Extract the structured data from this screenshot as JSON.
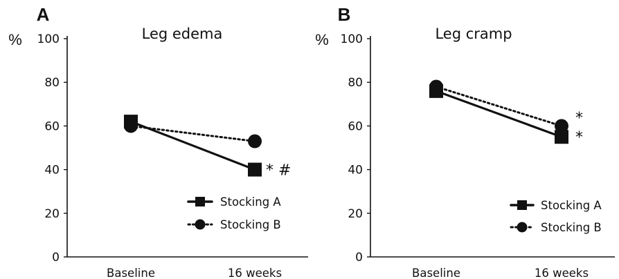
{
  "chart_data": [
    {
      "type": "line",
      "panel_label": "A",
      "title": "Leg edema",
      "ylabel": "%",
      "xlabel": "",
      "ylim": [
        0,
        100
      ],
      "yticks": [
        "0",
        "20",
        "40",
        "60",
        "80",
        "100"
      ],
      "categories": [
        "Baseline",
        "16 weeks"
      ],
      "series": [
        {
          "name": "Stocking A",
          "values": [
            62,
            40
          ],
          "marker": "square",
          "line": "solid",
          "color": "#111111"
        },
        {
          "name": "Stocking B",
          "values": [
            60,
            53
          ],
          "marker": "circle",
          "line": "dotted",
          "color": "#111111"
        }
      ],
      "annotations": [
        {
          "text": "* #",
          "category": "16 weeks",
          "y": 40
        }
      ],
      "legend": "bottom-right",
      "grid": false
    },
    {
      "type": "line",
      "panel_label": "B",
      "title": "Leg cramp",
      "ylabel": "%",
      "xlabel": "",
      "ylim": [
        0,
        100
      ],
      "yticks": [
        "0",
        "20",
        "40",
        "60",
        "80",
        "100"
      ],
      "categories": [
        "Baseline",
        "16 weeks"
      ],
      "series": [
        {
          "name": "Stocking A",
          "values": [
            76,
            55
          ],
          "marker": "square",
          "line": "solid",
          "color": "#111111"
        },
        {
          "name": "Stocking B",
          "values": [
            78,
            60
          ],
          "marker": "circle",
          "line": "dotted",
          "color": "#111111"
        }
      ],
      "annotations": [
        {
          "text": "*",
          "category": "16 weeks",
          "y": 64
        },
        {
          "text": "*",
          "category": "16 weeks",
          "y": 55
        }
      ],
      "legend": "bottom-right",
      "grid": false
    }
  ]
}
